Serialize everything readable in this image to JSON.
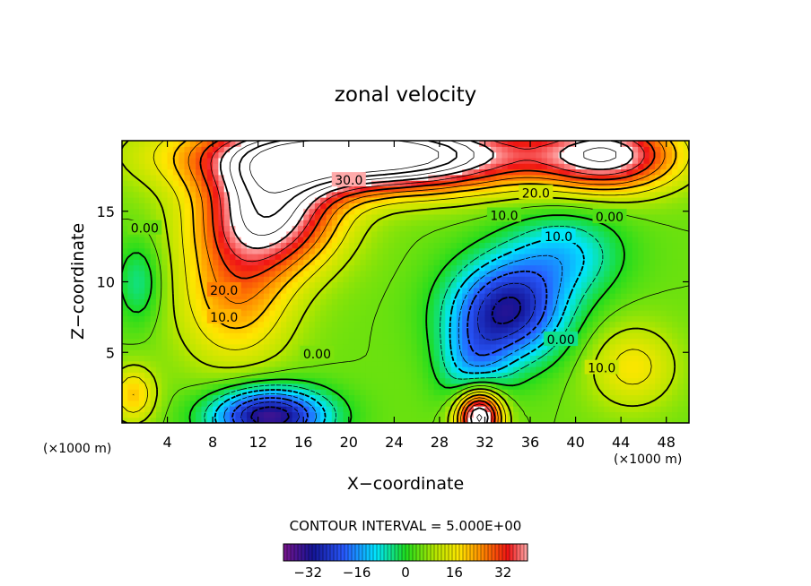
{
  "chart_data": {
    "type": "heatmap",
    "title": "zonal velocity",
    "xlabel": "X−coordinate",
    "ylabel": "Z−coordinate",
    "x_unit_left": "(×1000 m)",
    "x_unit_right": "(×1000 m)",
    "xlim": [
      0,
      50
    ],
    "ylim": [
      0,
      20
    ],
    "x_ticks": [
      4,
      8,
      12,
      16,
      20,
      24,
      28,
      32,
      36,
      40,
      44,
      48
    ],
    "y_ticks": [
      5,
      10,
      15
    ],
    "contour_interval_text": "CONTOUR INTERVAL = 5.000E+00",
    "colorbar": {
      "min": -40,
      "max": 40,
      "ticks": [
        -32,
        -16,
        0,
        16,
        32
      ],
      "tick_labels": [
        "−32",
        "−16",
        "0",
        "16",
        "32"
      ]
    },
    "contour_labels": [
      {
        "text": "30.0",
        "x": 20,
        "y": 17.2
      },
      {
        "text": "20.0",
        "x": 36.5,
        "y": 16.3
      },
      {
        "text": "10.0",
        "x": 33.7,
        "y": 14.7
      },
      {
        "text": "0.00",
        "x": 43,
        "y": 14.6
      },
      {
        "text": "10.0",
        "x": 38.5,
        "y": 13.2
      },
      {
        "text": "0.00",
        "x": 2,
        "y": 13.8
      },
      {
        "text": "20.0",
        "x": 9,
        "y": 9.4
      },
      {
        "text": "10.0",
        "x": 9,
        "y": 7.5
      },
      {
        "text": "0.00",
        "x": 17.2,
        "y": 4.9
      },
      {
        "text": "0.00",
        "x": 38.7,
        "y": 5.9
      },
      {
        "text": "10.0",
        "x": 42.3,
        "y": 3.9
      }
    ],
    "features": [
      {
        "x": 13,
        "z": 15,
        "u": 40,
        "sx": 6,
        "sz": 4
      },
      {
        "x": 22,
        "z": 19,
        "u": 60,
        "sx": 14,
        "sz": 2.5
      },
      {
        "x": 43,
        "z": 19,
        "u": 35,
        "sx": 6,
        "sz": 2.5
      },
      {
        "x": 10,
        "z": 9,
        "u": 18,
        "sx": 5,
        "sz": 5
      },
      {
        "x": 34,
        "z": 8,
        "u": -35,
        "sx": 5,
        "sz": 3.5
      },
      {
        "x": 31,
        "z": 4,
        "u": -15,
        "sx": 3,
        "sz": 3
      },
      {
        "x": 39,
        "z": 12,
        "u": -15,
        "sx": 5,
        "sz": 3
      },
      {
        "x": 13,
        "z": 0.5,
        "u": -40,
        "sx": 5,
        "sz": 2
      },
      {
        "x": 31.5,
        "z": 0.5,
        "u": 45,
        "sx": 2,
        "sz": 2
      },
      {
        "x": 1,
        "z": 2,
        "u": 15,
        "sx": 2,
        "sz": 2
      },
      {
        "x": 1.5,
        "z": 10,
        "u": -10,
        "sx": 2,
        "sz": 3
      },
      {
        "x": 45,
        "z": 4,
        "u": 12,
        "sx": 4,
        "sz": 3
      }
    ],
    "background_u": 5,
    "legend": "bottom-center colorbar",
    "grid": false
  }
}
